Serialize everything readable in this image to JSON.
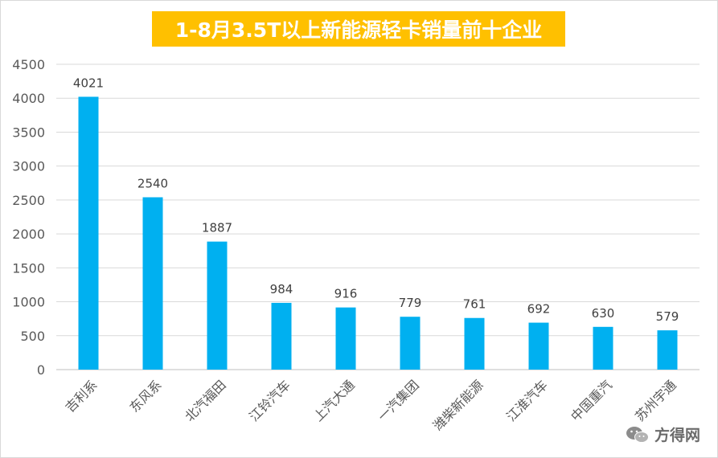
{
  "chart_data": {
    "type": "bar",
    "title": "1-8月3.5T以上新能源轻卡销量前十企业",
    "categories": [
      "吉利系",
      "东风系",
      "北汽福田",
      "江铃汽车",
      "上汽大通",
      "一汽集团",
      "潍柴新能源",
      "江淮汽车",
      "中国重汽",
      "苏州宇通"
    ],
    "values": [
      4021,
      2540,
      1887,
      984,
      916,
      779,
      761,
      692,
      630,
      579
    ],
    "ylim": [
      0,
      4500
    ],
    "yticks": [
      0,
      500,
      1000,
      1500,
      2000,
      2500,
      3000,
      3500,
      4000,
      4500
    ],
    "xlabel": "",
    "ylabel": "",
    "grid": true,
    "bar_color": "#00b0f0",
    "title_bg_color": "#ffc000"
  },
  "watermark": {
    "text": "方得网",
    "icon": "wechat-icon"
  }
}
